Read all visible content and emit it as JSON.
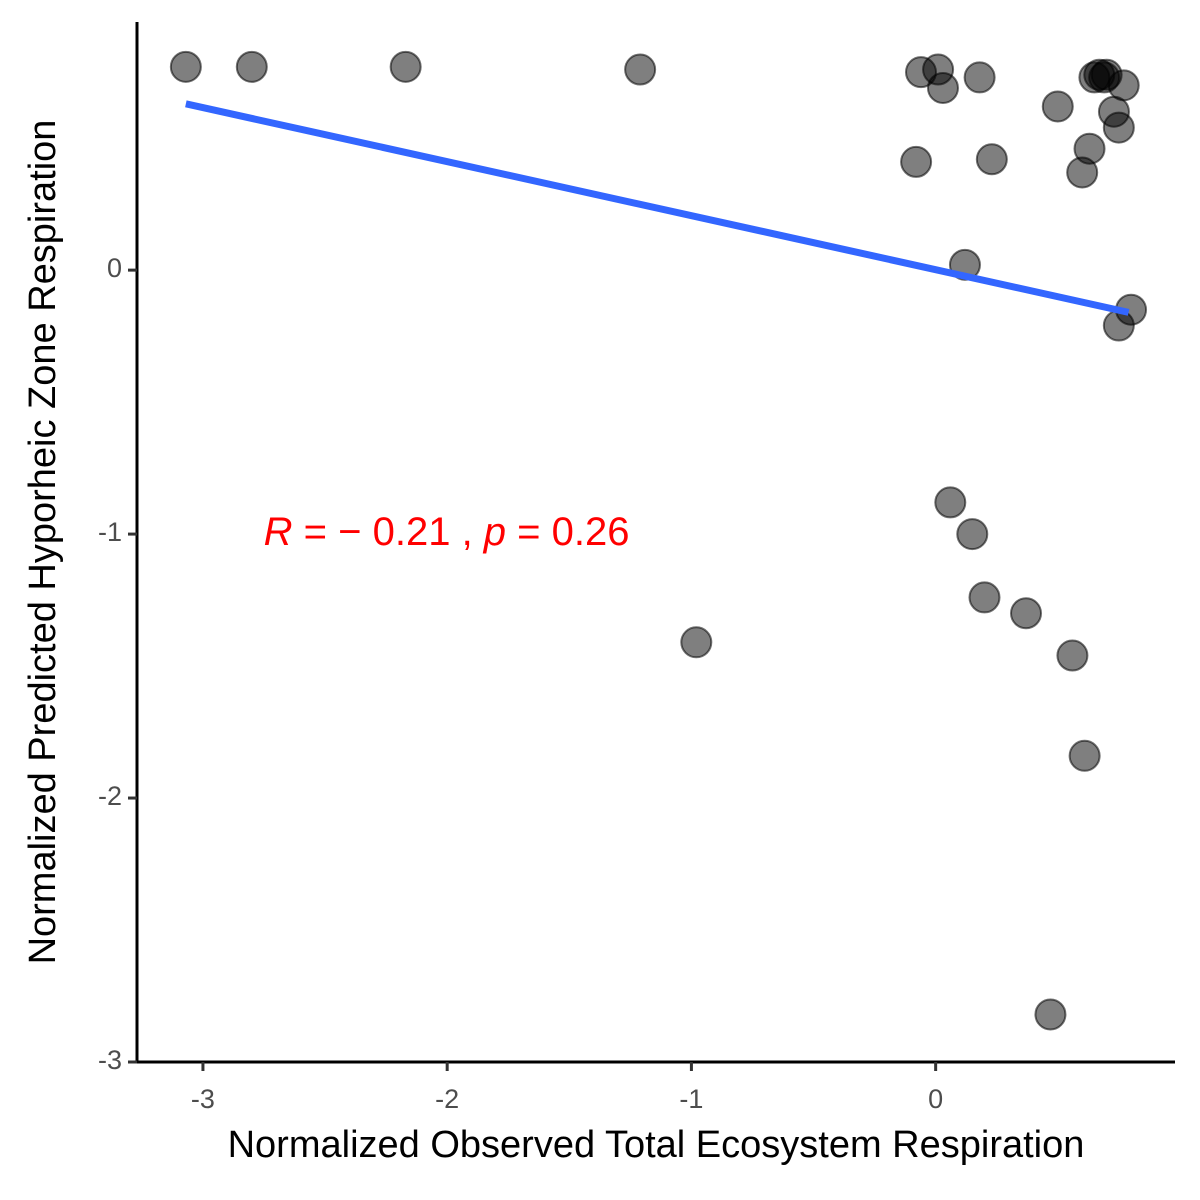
{
  "chart_data": {
    "type": "scatter",
    "xlabel": "Normalized Observed Total Ecosystem Respiration",
    "ylabel": "Normalized Predicted Hyporheic Zone Respiration",
    "xlim": [
      -3.27,
      0.98
    ],
    "ylim": [
      -3.0,
      0.94
    ],
    "x_ticks": [
      -3,
      -2,
      -1,
      0
    ],
    "y_ticks": [
      -3,
      -2,
      -1,
      0
    ],
    "grid": false,
    "point_color": "#000000",
    "point_opacity": 0.5,
    "line_color": "#3366FF",
    "annotation_color": "#FF0000",
    "points": [
      {
        "x": -3.07,
        "y": 0.77
      },
      {
        "x": -2.8,
        "y": 0.77
      },
      {
        "x": -2.17,
        "y": 0.77
      },
      {
        "x": -1.21,
        "y": 0.76
      },
      {
        "x": -0.98,
        "y": -1.41
      },
      {
        "x": -0.08,
        "y": 0.41
      },
      {
        "x": -0.06,
        "y": 0.75
      },
      {
        "x": 0.01,
        "y": 0.76
      },
      {
        "x": 0.03,
        "y": 0.69
      },
      {
        "x": 0.06,
        "y": -0.88
      },
      {
        "x": 0.12,
        "y": 0.02
      },
      {
        "x": 0.15,
        "y": -1.0
      },
      {
        "x": 0.18,
        "y": 0.73
      },
      {
        "x": 0.2,
        "y": -1.24
      },
      {
        "x": 0.23,
        "y": 0.42
      },
      {
        "x": 0.37,
        "y": -1.3
      },
      {
        "x": 0.47,
        "y": -2.82
      },
      {
        "x": 0.5,
        "y": 0.62
      },
      {
        "x": 0.56,
        "y": -1.46
      },
      {
        "x": 0.6,
        "y": 0.37
      },
      {
        "x": 0.61,
        "y": -1.84
      },
      {
        "x": 0.63,
        "y": 0.46
      },
      {
        "x": 0.65,
        "y": 0.73
      },
      {
        "x": 0.67,
        "y": 0.74
      },
      {
        "x": 0.69,
        "y": 0.73
      },
      {
        "x": 0.7,
        "y": 0.74
      },
      {
        "x": 0.73,
        "y": 0.6
      },
      {
        "x": 0.75,
        "y": 0.54
      },
      {
        "x": 0.75,
        "y": -0.21
      },
      {
        "x": 0.77,
        "y": 0.7
      },
      {
        "x": 0.8,
        "y": -0.15
      }
    ],
    "regression_line": {
      "x": [
        -3.07,
        0.79
      ],
      "y": [
        0.63,
        -0.16
      ]
    },
    "annotation": {
      "r_symbol": "R",
      "equals_1": " = ",
      "r_value": "− 0.21",
      "separator": " , ",
      "p_symbol": "p",
      "equals_2": " = ",
      "p_value": "0.26",
      "x": -3.07,
      "y": -1.0
    }
  }
}
